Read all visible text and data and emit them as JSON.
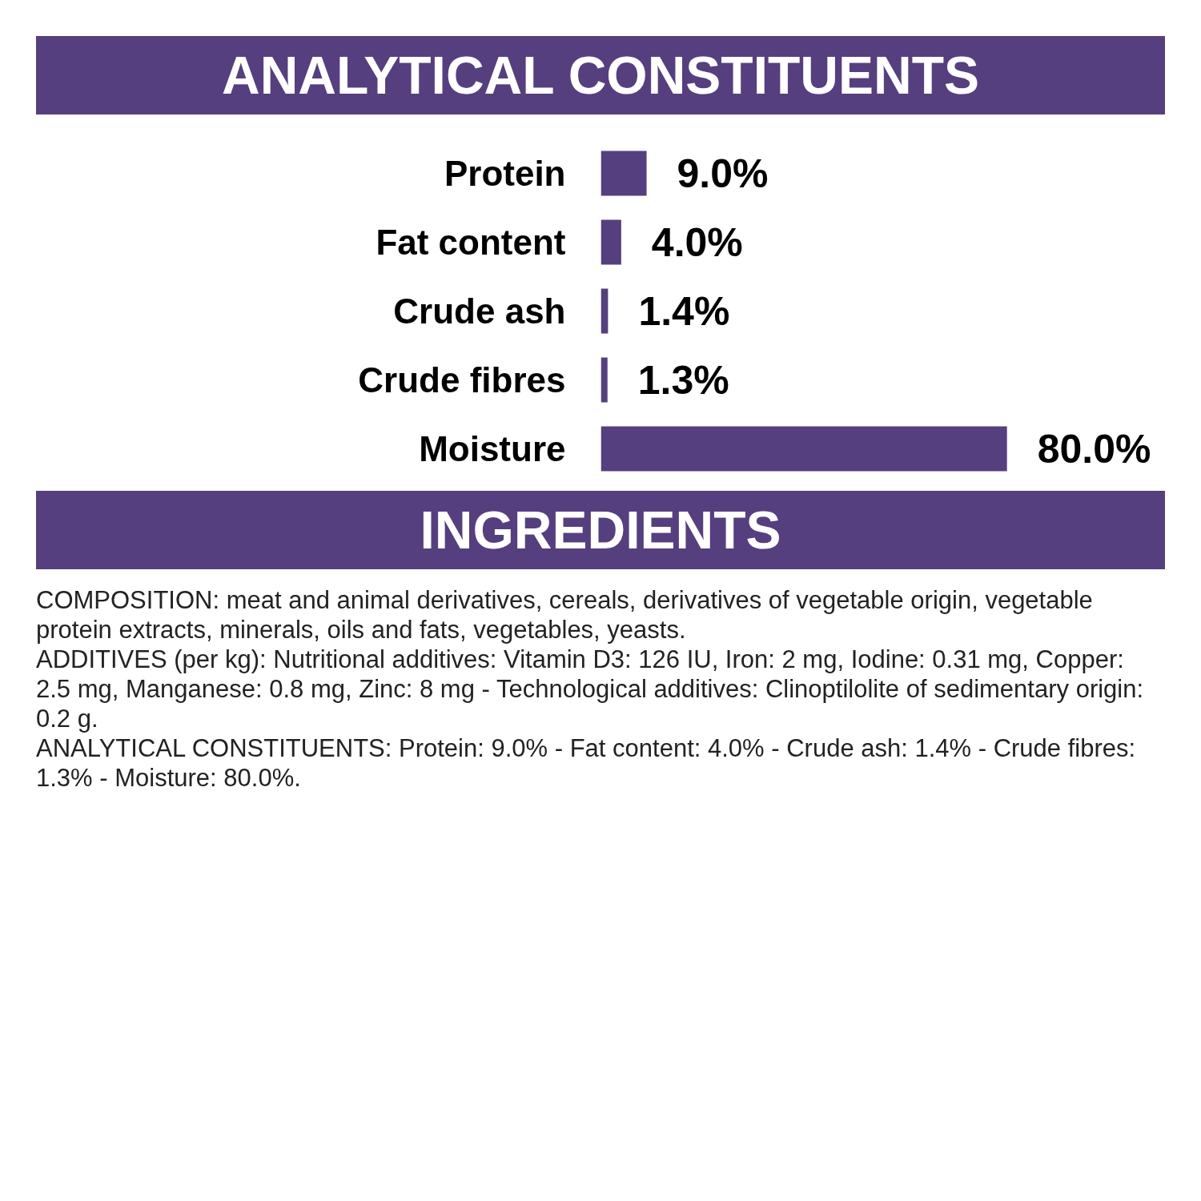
{
  "chart_data": {
    "type": "bar",
    "orientation": "horizontal",
    "title": "ANALYTICAL CONSTITUENTS",
    "categories": [
      "Protein",
      "Fat content",
      "Crude ash",
      "Crude fibres",
      "Moisture"
    ],
    "values": [
      9.0,
      4.0,
      1.4,
      1.3,
      80.0
    ],
    "value_labels": [
      "9.0%",
      "4.0%",
      "1.4%",
      "1.3%",
      "80.0%"
    ],
    "color": "#553f7e",
    "annotations": [
      "INGREDIENTS",
      "COMPOSITION: meat and animal derivatives, cereals, derivatives of vegetable origin, vegetable protein extracts, minerals, oils and fats, vegetables, yeasts.",
      "ADDITIVES (per kg): Nutritional additives: Vitamin D3: 126 IU, Iron: 2 mg, Iodine: 0.31 mg, Copper: 2.5 mg, Manganese: 0.8 mg, Zinc: 8 mg - Technological additives: Clinoptilolite of sedimentary origin: 0.2 g.",
      "ANALYTICAL CONSTITUENTS: Protein: 9.0% - Fat content: 4.0% - Crude ash: 1.4% - Crude fibres: 1.3% - Moisture: 80.0%."
    ]
  }
}
